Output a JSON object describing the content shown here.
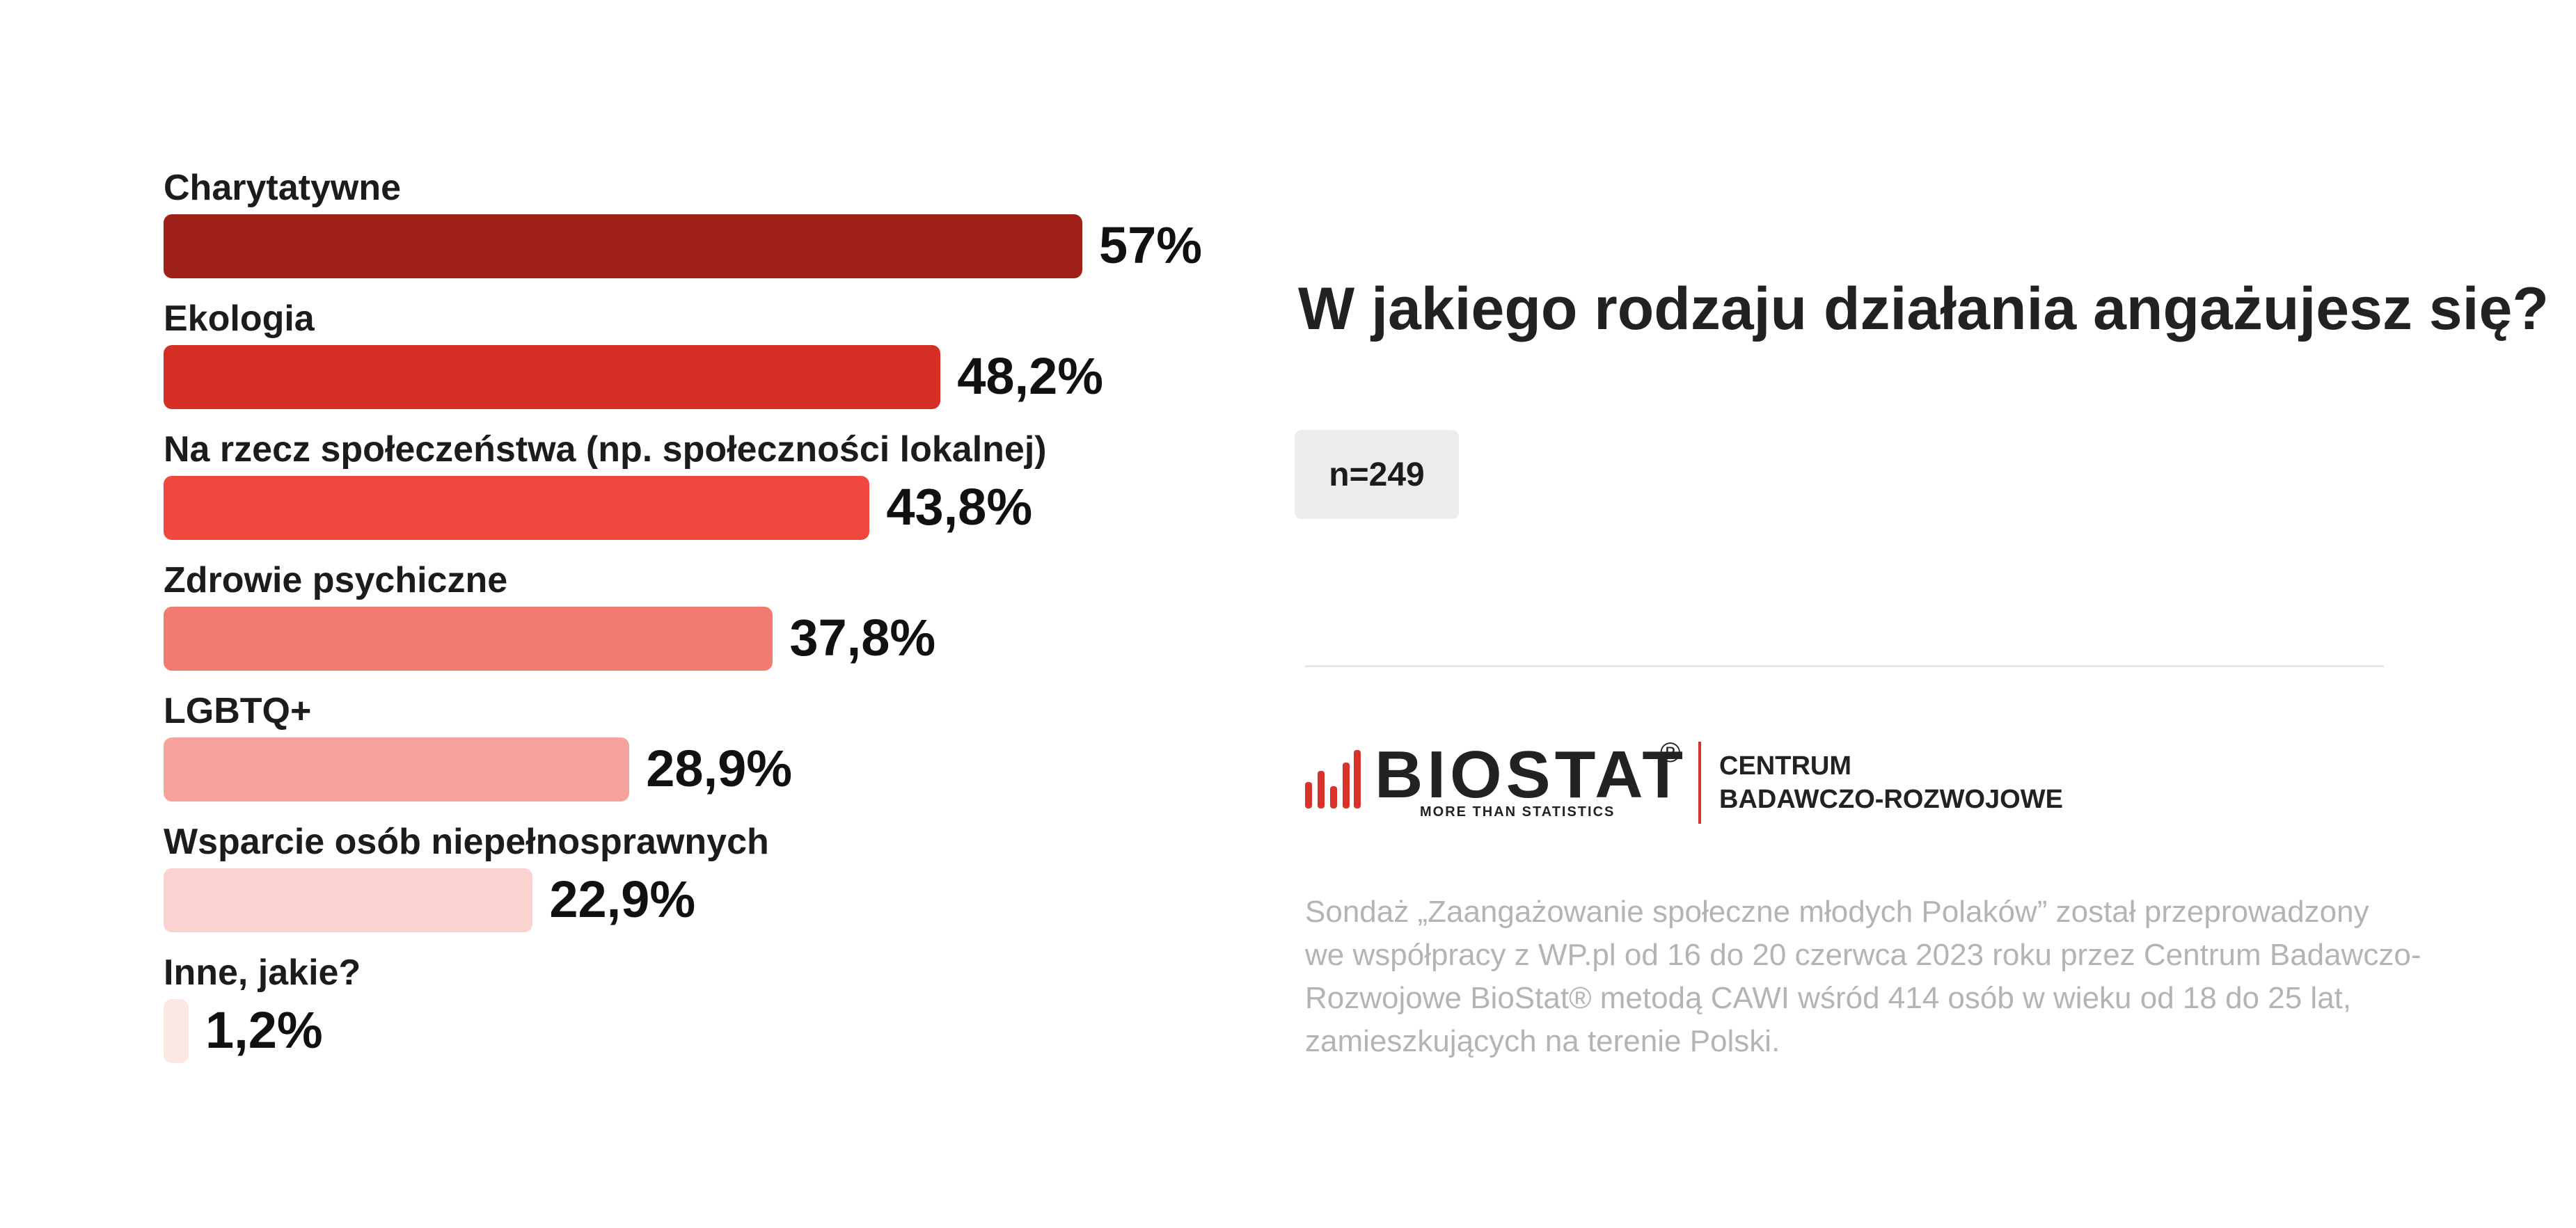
{
  "chart_data": {
    "type": "bar",
    "orientation": "horizontal",
    "categories": [
      "Charytatywne",
      "Ekologia",
      "Na rzecz społeczeństwa (np. społeczności lokalnej)",
      "Zdrowie psychiczne",
      "LGBTQ+",
      "Wsparcie osób niepełnosprawnych",
      "Inne, jakie?"
    ],
    "values": [
      57,
      48.2,
      43.8,
      37.8,
      28.9,
      22.9,
      1.2
    ],
    "value_labels": [
      "57%",
      "48,2%",
      "43,8%",
      "37,8%",
      "28,9%",
      "22,9%",
      "1,2%"
    ],
    "colors": [
      "#9e2018",
      "#d42e25",
      "#f0473e",
      "#f27a70",
      "#f6a39d",
      "#fad2cf",
      "#fde7e5"
    ],
    "unit": "%",
    "xlim": [
      0,
      100
    ],
    "grid": false,
    "legend": "none"
  },
  "title": "W jakiego rodzaju działania angażujesz się?",
  "sample": "n=249",
  "logo": {
    "name": "BIOSTAT",
    "registered": "®",
    "tagline": "MORE THAN STATISTICS",
    "line1": "CENTRUM",
    "line2": "BADAWCZO-ROZWOJOWE",
    "accent_color": "#d9322a",
    "icon": "bar-chart-icon"
  },
  "note": {
    "lines": [
      "Sondaż  „Zaangażowanie społeczne młodych Polaków” został przeprowadzony",
      "we współpracy z WP.pl od 16 do 20 czerwca 2023 roku przez Centrum Badawczo-",
      "Rozwojowe BioStat® metodą CAWI wśród 414 osób w wieku od 18 do 25 lat,",
      "zamieszkujących na terenie Polski."
    ]
  }
}
